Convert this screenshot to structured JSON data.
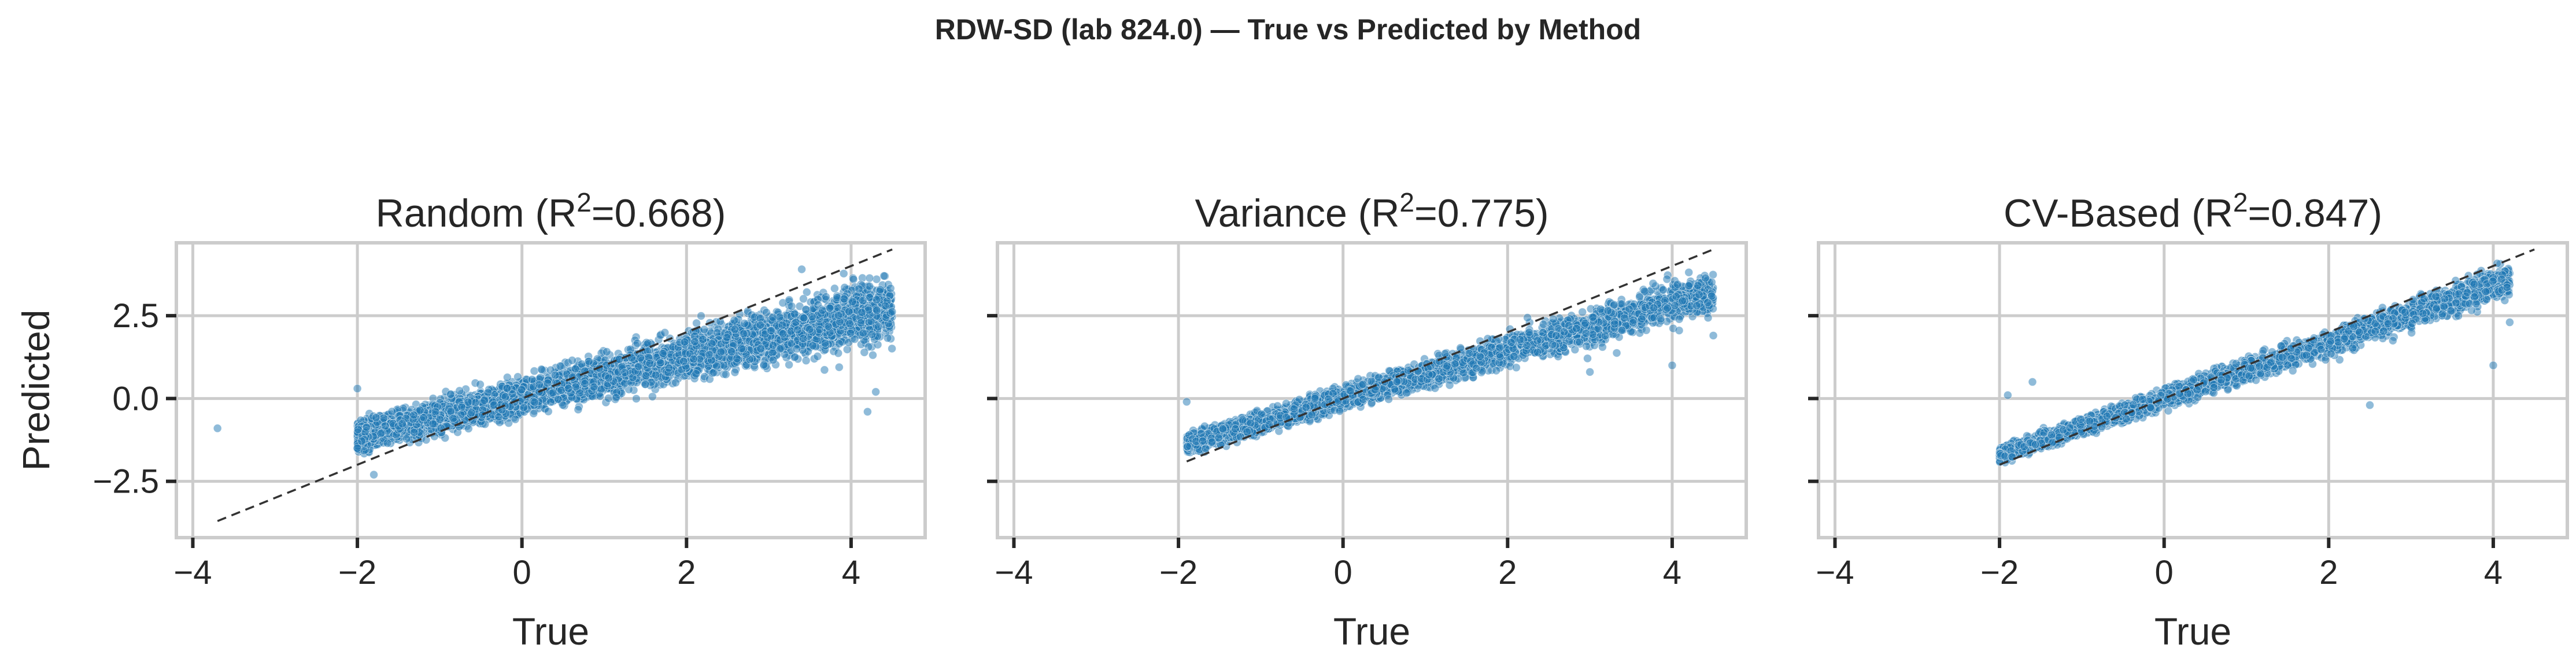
{
  "figure": {
    "title": "RDW-SD (lab 824.0) — True vs Predicted by Method"
  },
  "colors": {
    "points": "#1f77b4",
    "identity_line": "#333333",
    "grid": "#cccccc"
  },
  "chart_data": [
    {
      "type": "scatter",
      "title_prefix": "Random (R",
      "title_sup": "2",
      "title_suffix": "=0.668)",
      "xlabel": "True",
      "ylabel": "Predicted",
      "xlim": [
        -4.2,
        4.9
      ],
      "ylim": [
        -4.2,
        4.7
      ],
      "xticks": [
        -4,
        -2,
        0,
        2,
        4
      ],
      "xtick_labels": [
        "−4",
        "−2",
        "0",
        "2",
        "4"
      ],
      "yticks": [
        -2.5,
        0.0,
        2.5
      ],
      "ytick_labels": [
        "−2.5",
        "0.0",
        "2.5"
      ],
      "show_ytick_labels": true,
      "grid": true,
      "identity_line": [
        [
          -3.7,
          -3.7
        ],
        [
          4.5,
          4.5
        ]
      ],
      "point_cloud": {
        "x_range": [
          -2.0,
          4.5
        ],
        "slope": 0.6,
        "intercept": 0.05,
        "noise_sd": 0.55,
        "approx_count": 6000
      },
      "points": [
        [
          -3.7,
          -0.9
        ],
        [
          -2.0,
          0.3
        ],
        [
          -2.0,
          -1.5
        ],
        [
          4.4,
          3.7
        ],
        [
          4.3,
          0.2
        ],
        [
          3.4,
          3.9
        ],
        [
          -1.8,
          -2.3
        ],
        [
          4.2,
          -0.4
        ]
      ]
    },
    {
      "type": "scatter",
      "title_prefix": "Variance (R",
      "title_sup": "2",
      "title_suffix": "=0.775)",
      "xlabel": "True",
      "ylabel": "",
      "xlim": [
        -4.2,
        4.9
      ],
      "ylim": [
        -4.2,
        4.7
      ],
      "xticks": [
        -4,
        -2,
        0,
        2,
        4
      ],
      "xtick_labels": [
        "−4",
        "−2",
        "0",
        "2",
        "4"
      ],
      "yticks": [
        -2.5,
        0.0,
        2.5
      ],
      "ytick_labels": [
        "−2.5",
        "0.0",
        "2.5"
      ],
      "show_ytick_labels": false,
      "grid": true,
      "identity_line": [
        [
          -1.9,
          -1.9
        ],
        [
          4.5,
          4.5
        ]
      ],
      "point_cloud": {
        "x_range": [
          -1.9,
          4.5
        ],
        "slope": 0.72,
        "intercept": 0.0,
        "noise_sd": 0.38,
        "approx_count": 3500
      },
      "points": [
        [
          -1.9,
          -0.1
        ],
        [
          4.2,
          3.4
        ],
        [
          4.5,
          1.9
        ],
        [
          4.0,
          1.0
        ],
        [
          4.3,
          2.8
        ],
        [
          3.0,
          0.8
        ]
      ]
    },
    {
      "type": "scatter",
      "title_prefix": "CV-Based (R",
      "title_sup": "2",
      "title_suffix": "=0.847)",
      "xlabel": "True",
      "ylabel": "",
      "xlim": [
        -4.2,
        4.9
      ],
      "ylim": [
        -4.2,
        4.7
      ],
      "xticks": [
        -4,
        -2,
        0,
        2,
        4
      ],
      "xtick_labels": [
        "−4",
        "−2",
        "0",
        "2",
        "4"
      ],
      "yticks": [
        -2.5,
        0.0,
        2.5
      ],
      "ytick_labels": [
        "−2.5",
        "0.0",
        "2.5"
      ],
      "show_ytick_labels": false,
      "grid": true,
      "identity_line": [
        [
          -2.0,
          -2.0
        ],
        [
          4.5,
          4.5
        ]
      ],
      "point_cloud": {
        "x_range": [
          -2.0,
          4.2
        ],
        "slope": 0.85,
        "intercept": 0.0,
        "noise_sd": 0.3,
        "approx_count": 3500
      },
      "points": [
        [
          -1.6,
          0.5
        ],
        [
          -1.9,
          0.1
        ],
        [
          4.2,
          2.3
        ],
        [
          4.0,
          1.0
        ],
        [
          4.1,
          3.6
        ],
        [
          2.5,
          -0.2
        ]
      ]
    }
  ]
}
